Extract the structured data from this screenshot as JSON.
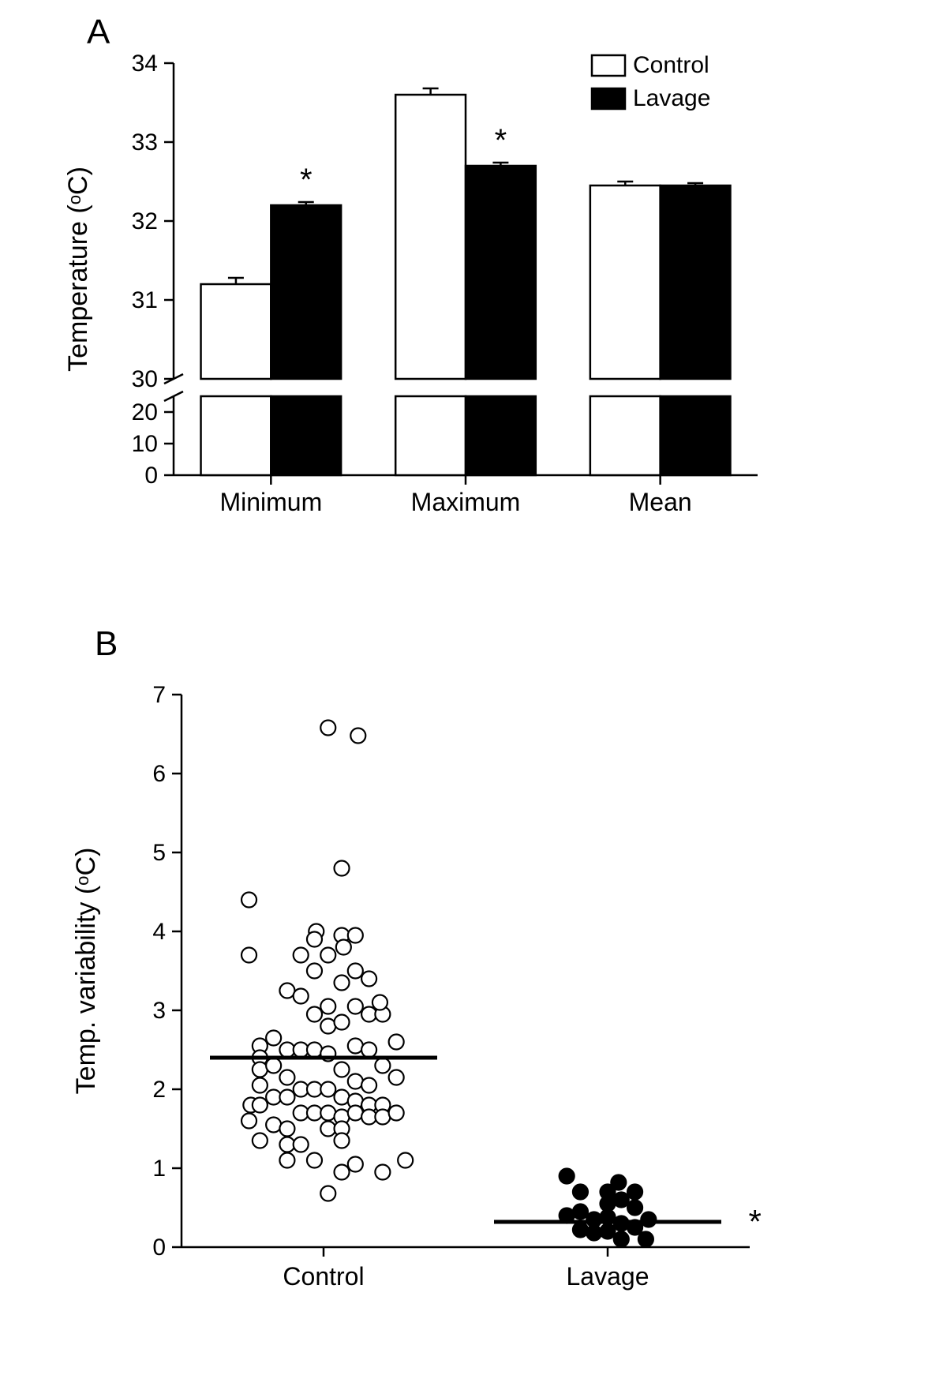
{
  "panelA": {
    "label": "A",
    "label_fontsize": 44,
    "type": "bar_grouped_broken_axis",
    "ylabel": "Temperature (°C)",
    "label_fontsize_axis": 34,
    "tick_fontsize": 30,
    "category_fontsize": 32,
    "legend_fontsize": 30,
    "categories": [
      "Minimum",
      "Maximum",
      "Mean"
    ],
    "series": [
      {
        "name": "Control",
        "fill": "#ffffff",
        "stroke": "#000000"
      },
      {
        "name": "Lavage",
        "fill": "#000000",
        "stroke": "#000000"
      }
    ],
    "values": {
      "Minimum": {
        "Control": 31.2,
        "Lavage": 32.2
      },
      "Maximum": {
        "Control": 33.6,
        "Lavage": 32.7
      },
      "Mean": {
        "Control": 32.45,
        "Lavage": 32.45
      }
    },
    "errors": {
      "Minimum": {
        "Control": 0.08,
        "Lavage": 0.04
      },
      "Maximum": {
        "Control": 0.08,
        "Lavage": 0.04
      },
      "Mean": {
        "Control": 0.05,
        "Lavage": 0.03
      }
    },
    "significance": [
      {
        "category": "Minimum",
        "series": "Lavage",
        "symbol": "*"
      },
      {
        "category": "Maximum",
        "series": "Lavage",
        "symbol": "*"
      }
    ],
    "axis_break": {
      "low_max": 25,
      "high_min": 30,
      "high_max": 34
    },
    "y_ticks_low": [
      0,
      10,
      20
    ],
    "y_ticks_high": [
      30,
      31,
      32,
      33,
      34
    ],
    "bar_width": 0.36,
    "group_gap": 0.3,
    "colors": {
      "axis": "#000000",
      "background": "#ffffff",
      "sig_text": "#000000"
    },
    "stroke_width": 2.5
  },
  "panelB": {
    "label": "B",
    "label_fontsize": 44,
    "type": "scatter_strip",
    "ylabel": "Temp. variability (°C)",
    "label_fontsize_axis": 34,
    "tick_fontsize": 30,
    "category_fontsize": 32,
    "categories": [
      "Control",
      "Lavage"
    ],
    "ylim": [
      0,
      7
    ],
    "y_ticks": [
      0,
      1,
      2,
      3,
      4,
      5,
      6,
      7
    ],
    "marker_radius": 9.5,
    "marker_stroke": "#000000",
    "marker_stroke_width": 2.2,
    "series_style": {
      "Control": {
        "fill": "#ffffff"
      },
      "Lavage": {
        "fill": "#000000"
      }
    },
    "means": {
      "Control": 2.4,
      "Lavage": 0.32
    },
    "mean_line_width": 5,
    "significance": [
      {
        "category": "Lavage",
        "symbol": "*",
        "y": 0.32
      }
    ],
    "points": {
      "Control": [
        [
          -0.82,
          4.4
        ],
        [
          -0.82,
          3.7
        ],
        [
          -0.82,
          1.6
        ],
        [
          -0.8,
          1.8
        ],
        [
          -0.7,
          2.55
        ],
        [
          -0.7,
          2.4
        ],
        [
          -0.7,
          2.25
        ],
        [
          -0.7,
          2.05
        ],
        [
          -0.7,
          1.8
        ],
        [
          -0.7,
          1.35
        ],
        [
          -0.55,
          2.65
        ],
        [
          -0.55,
          2.3
        ],
        [
          -0.55,
          1.9
        ],
        [
          -0.55,
          1.55
        ],
        [
          -0.4,
          3.25
        ],
        [
          -0.4,
          2.5
        ],
        [
          -0.4,
          2.15
        ],
        [
          -0.4,
          1.9
        ],
        [
          -0.4,
          1.5
        ],
        [
          -0.4,
          1.3
        ],
        [
          -0.4,
          1.1
        ],
        [
          -0.25,
          3.7
        ],
        [
          -0.25,
          3.18
        ],
        [
          -0.25,
          2.5
        ],
        [
          -0.25,
          2.0
        ],
        [
          -0.25,
          1.7
        ],
        [
          -0.25,
          1.3
        ],
        [
          -0.08,
          4.0
        ],
        [
          -0.1,
          3.9
        ],
        [
          -0.1,
          3.5
        ],
        [
          -0.1,
          2.95
        ],
        [
          -0.1,
          2.5
        ],
        [
          -0.1,
          2.0
        ],
        [
          -0.1,
          1.7
        ],
        [
          -0.1,
          1.1
        ],
        [
          0.05,
          6.58
        ],
        [
          0.05,
          3.7
        ],
        [
          0.05,
          3.05
        ],
        [
          0.05,
          2.8
        ],
        [
          0.05,
          2.45
        ],
        [
          0.05,
          2.0
        ],
        [
          0.05,
          1.7
        ],
        [
          0.05,
          1.5
        ],
        [
          0.05,
          0.68
        ],
        [
          0.2,
          4.8
        ],
        [
          0.2,
          3.95
        ],
        [
          0.22,
          3.8
        ],
        [
          0.2,
          3.35
        ],
        [
          0.2,
          2.85
        ],
        [
          0.2,
          2.25
        ],
        [
          0.2,
          1.9
        ],
        [
          0.2,
          1.65
        ],
        [
          0.2,
          1.5
        ],
        [
          0.2,
          1.35
        ],
        [
          0.2,
          0.95
        ],
        [
          0.38,
          6.48
        ],
        [
          0.35,
          3.95
        ],
        [
          0.35,
          3.5
        ],
        [
          0.35,
          3.05
        ],
        [
          0.35,
          2.55
        ],
        [
          0.35,
          2.1
        ],
        [
          0.35,
          1.85
        ],
        [
          0.35,
          1.7
        ],
        [
          0.35,
          1.05
        ],
        [
          0.5,
          3.4
        ],
        [
          0.5,
          2.95
        ],
        [
          0.5,
          2.5
        ],
        [
          0.5,
          2.05
        ],
        [
          0.5,
          1.8
        ],
        [
          0.5,
          1.65
        ],
        [
          0.65,
          2.95
        ],
        [
          0.62,
          3.1
        ],
        [
          0.65,
          2.3
        ],
        [
          0.65,
          1.8
        ],
        [
          0.65,
          1.65
        ],
        [
          0.65,
          0.95
        ],
        [
          0.8,
          2.6
        ],
        [
          0.8,
          2.15
        ],
        [
          0.8,
          1.7
        ],
        [
          0.9,
          1.1
        ]
      ],
      "Lavage": [
        [
          -0.45,
          0.9
        ],
        [
          -0.45,
          0.4
        ],
        [
          -0.3,
          0.7
        ],
        [
          -0.3,
          0.45
        ],
        [
          -0.3,
          0.22
        ],
        [
          -0.15,
          0.35
        ],
        [
          -0.15,
          0.18
        ],
        [
          0.0,
          0.55
        ],
        [
          0.0,
          0.38
        ],
        [
          0.0,
          0.2
        ],
        [
          0.0,
          0.7
        ],
        [
          0.12,
          0.82
        ],
        [
          0.15,
          0.6
        ],
        [
          0.15,
          0.3
        ],
        [
          0.15,
          0.1
        ],
        [
          0.3,
          0.7
        ],
        [
          0.3,
          0.25
        ],
        [
          0.3,
          0.5
        ],
        [
          0.42,
          0.1
        ],
        [
          0.45,
          0.35
        ]
      ]
    },
    "colors": {
      "axis": "#000000",
      "background": "#ffffff"
    },
    "stroke_width": 2.5
  }
}
